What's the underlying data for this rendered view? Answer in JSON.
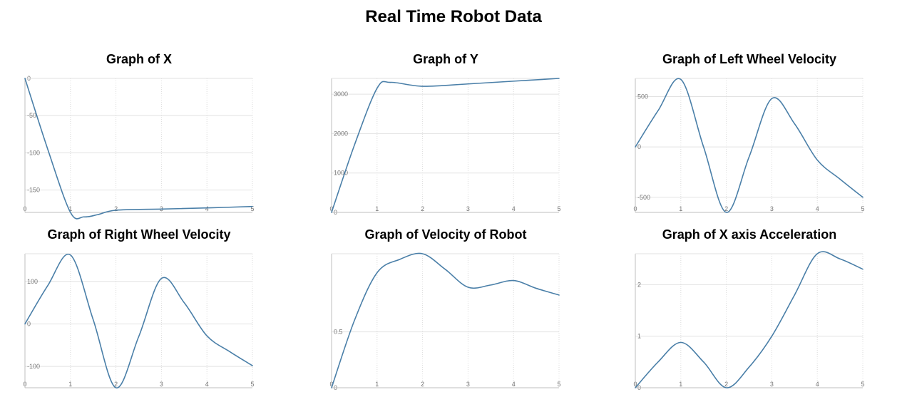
{
  "page": {
    "title": "Real Time Robot Data"
  },
  "style": {
    "line_color": "#4a7fa8",
    "grid_color": "#e2e2e2"
  },
  "chart_data": [
    {
      "type": "line",
      "title": "Graph of X",
      "xlabel": "",
      "ylabel": "",
      "x": [
        0,
        1,
        2,
        3,
        4,
        5
      ],
      "xticks": [
        "0",
        "1",
        "2",
        "3",
        "4",
        "5"
      ],
      "yticks": [
        0,
        -50,
        -100,
        -150
      ],
      "ylim": [
        -180,
        0
      ],
      "xlim": [
        0,
        5
      ],
      "grid": true,
      "series": [
        {
          "values": [
            [
              0,
              0
            ],
            [
              0.5,
              -95
            ],
            [
              1,
              -180
            ],
            [
              1.3,
              -186
            ],
            [
              1.6,
              -183
            ],
            [
              2,
              -177
            ],
            [
              3,
              -175.5
            ],
            [
              4,
              -174
            ],
            [
              5,
              -172
            ]
          ]
        }
      ]
    },
    {
      "type": "line",
      "title": "Graph of Y",
      "xlabel": "",
      "ylabel": "",
      "x": [
        0,
        1,
        2,
        3,
        4,
        5
      ],
      "xticks": [
        "0",
        "1",
        "2",
        "3",
        "4",
        "5"
      ],
      "yticks": [
        0,
        1000,
        2000,
        3000
      ],
      "ylim": [
        0,
        3400
      ],
      "xlim": [
        0,
        5
      ],
      "grid": true,
      "series": [
        {
          "values": [
            [
              0,
              0
            ],
            [
              0.5,
              1700
            ],
            [
              1,
              3150
            ],
            [
              1.3,
              3300
            ],
            [
              2,
              3200
            ],
            [
              3,
              3260
            ],
            [
              4,
              3330
            ],
            [
              5,
              3400
            ]
          ]
        }
      ]
    },
    {
      "type": "line",
      "title": "Graph of Left Wheel Velocity",
      "xlabel": "",
      "ylabel": "",
      "x": [
        0,
        1,
        2,
        3,
        4,
        5
      ],
      "xticks": [
        "0",
        "1",
        "2",
        "3",
        "4",
        "5"
      ],
      "yticks": [
        -500,
        0,
        500
      ],
      "ylim": [
        -650,
        680
      ],
      "xlim": [
        0,
        5
      ],
      "grid": true,
      "series": [
        {
          "values": [
            [
              0,
              0
            ],
            [
              0.5,
              360
            ],
            [
              1,
              670
            ],
            [
              1.5,
              0
            ],
            [
              2,
              -650
            ],
            [
              2.5,
              -100
            ],
            [
              3,
              480
            ],
            [
              3.5,
              230
            ],
            [
              4,
              -130
            ],
            [
              4.5,
              -320
            ],
            [
              5,
              -500
            ]
          ]
        }
      ]
    },
    {
      "type": "line",
      "title": "Graph of Right Wheel Velocity",
      "xlabel": "",
      "ylabel": "",
      "x": [
        0,
        1,
        2,
        3,
        4,
        5
      ],
      "xticks": [
        "0",
        "1",
        "2",
        "3",
        "4",
        "5"
      ],
      "yticks": [
        -100,
        0,
        100
      ],
      "ylim": [
        -150,
        165
      ],
      "xlim": [
        0,
        5
      ],
      "grid": true,
      "series": [
        {
          "values": [
            [
              0,
              0
            ],
            [
              0.5,
              90
            ],
            [
              1,
              162
            ],
            [
              1.5,
              10
            ],
            [
              2,
              -150
            ],
            [
              2.5,
              -30
            ],
            [
              3,
              107
            ],
            [
              3.5,
              50
            ],
            [
              4,
              -28
            ],
            [
              4.5,
              -65
            ],
            [
              5,
              -98
            ]
          ]
        }
      ]
    },
    {
      "type": "line",
      "title": "Graph of Velocity of Robot",
      "xlabel": "",
      "ylabel": "",
      "x": [
        0,
        1,
        2,
        3,
        4,
        5
      ],
      "xticks": [
        "0",
        "1",
        "2",
        "3",
        "4",
        "5"
      ],
      "yticks": [
        0,
        0.5
      ],
      "ylim": [
        0,
        1.2
      ],
      "xlim": [
        0,
        5
      ],
      "grid": true,
      "series": [
        {
          "values": [
            [
              0,
              0
            ],
            [
              0.5,
              0.6
            ],
            [
              1,
              1.03
            ],
            [
              1.5,
              1.15
            ],
            [
              2,
              1.2
            ],
            [
              2.5,
              1.06
            ],
            [
              3,
              0.9
            ],
            [
              3.5,
              0.92
            ],
            [
              4,
              0.96
            ],
            [
              4.5,
              0.89
            ],
            [
              5,
              0.83
            ]
          ]
        }
      ]
    },
    {
      "type": "line",
      "title": "Graph of X axis Acceleration",
      "xlabel": "",
      "ylabel": "",
      "x": [
        0,
        1,
        2,
        3,
        4,
        5
      ],
      "xticks": [
        "0",
        "1",
        "2",
        "3",
        "4",
        "5"
      ],
      "yticks": [
        0,
        1,
        2
      ],
      "ylim": [
        0,
        2.6
      ],
      "xlim": [
        0,
        5
      ],
      "grid": true,
      "series": [
        {
          "values": [
            [
              0,
              0
            ],
            [
              0.5,
              0.5
            ],
            [
              1,
              0.88
            ],
            [
              1.5,
              0.5
            ],
            [
              2,
              0
            ],
            [
              2.5,
              0.4
            ],
            [
              3,
              1.0
            ],
            [
              3.5,
              1.8
            ],
            [
              4,
              2.6
            ],
            [
              4.5,
              2.5
            ],
            [
              5,
              2.3
            ]
          ]
        }
      ]
    }
  ]
}
